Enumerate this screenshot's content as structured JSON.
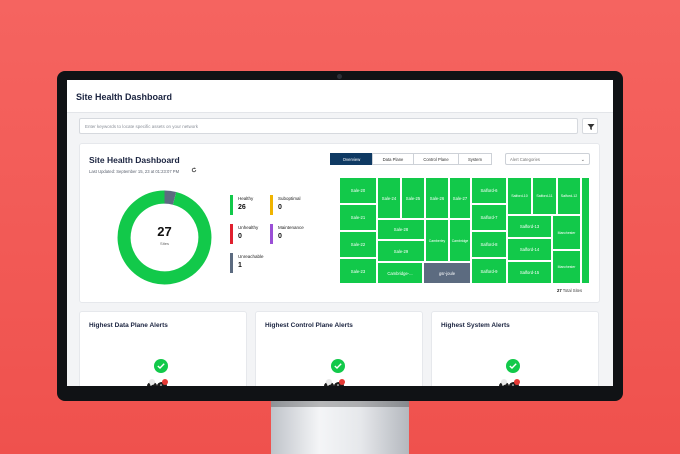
{
  "app": {
    "title": "Site Health Dashboard"
  },
  "search": {
    "placeholder": "Enter keywords to locate specific assets on your network"
  },
  "card": {
    "title": "Site Health Dashboard",
    "last_updated": "Last Updated: September 15, 23 at 01:23:07 PM"
  },
  "donut": {
    "total": "27",
    "label": "Sites",
    "healthy_fraction": 0.96,
    "unreachable_fraction": 0.04
  },
  "legend": [
    {
      "name": "Healthy",
      "value": "26",
      "color": "#12c94a"
    },
    {
      "name": "Suboptimal",
      "value": "0",
      "color": "#f0b400"
    },
    {
      "name": "Unhealthy",
      "value": "0",
      "color": "#e0202e"
    },
    {
      "name": "Maintenance",
      "value": "0",
      "color": "#9b4fd6"
    },
    {
      "name": "Unreachable",
      "value": "1",
      "color": "#5c6b80"
    }
  ],
  "tabs": [
    "Overview",
    "Data Plane",
    "Control Plane",
    "System"
  ],
  "alert_categories": {
    "placeholder": "Alert Categories"
  },
  "treemap": {
    "left": [
      "Sale-20",
      "Sale-21",
      "Sale-22",
      "Sale-23",
      "Sale-24",
      "Sale-25",
      "Sale-26",
      "Sale-27",
      "Sale-28",
      "Sale-29",
      "Camberley",
      "Cambridge",
      "Cambridge-...",
      "gsr-joule"
    ],
    "right": [
      "Salford-6",
      "Salford-7",
      "Salford-8",
      "Salford-9",
      "Salford-10",
      "Salford-11",
      "Salford-12",
      "Salford-13",
      "Salford-14",
      "Salford-15",
      "Manchester",
      "Manchester"
    ]
  },
  "total_sites": {
    "count": "27",
    "label": "Total Sites"
  },
  "alert_cards": [
    {
      "title": "Highest Data Plane Alerts"
    },
    {
      "title": "Highest Control Plane Alerts"
    },
    {
      "title": "Highest System Alerts"
    }
  ],
  "colors": {
    "healthy": "#12c94a",
    "unreachable": "#5c6b80",
    "accent": "#0f3a63",
    "background": "#f25a56"
  }
}
